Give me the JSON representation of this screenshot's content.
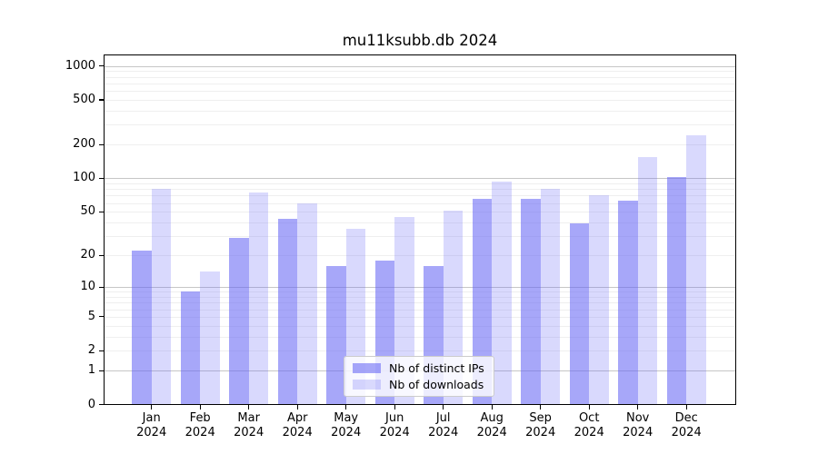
{
  "title": "mu11ksubb.db 2024",
  "chart_data": {
    "type": "bar",
    "title": "mu11ksubb.db 2024",
    "categories": [
      "Jan 2024",
      "Feb 2024",
      "Mar 2024",
      "Apr 2024",
      "May 2024",
      "Jun 2024",
      "Jul 2024",
      "Aug 2024",
      "Sep 2024",
      "Oct 2024",
      "Nov 2024",
      "Dec 2024"
    ],
    "series": [
      {
        "key": "distinct-ips",
        "name": "Nb of distinct IPs",
        "fill": "rgba(100,100,245,0.57)",
        "legend_hex": "#a7a7f9",
        "values": [
          22,
          9,
          29,
          43,
          16,
          18,
          16,
          65,
          65,
          39,
          63,
          103
        ]
      },
      {
        "key": "downloads",
        "name": "Nb of downloads",
        "fill": "rgba(100,100,245,0.245)",
        "legend_hex": "#d9d9fc",
        "values": [
          80,
          14,
          75,
          60,
          35,
          45,
          51,
          93,
          80,
          70,
          155,
          240
        ]
      }
    ],
    "xlabel": "",
    "ylabel": "",
    "yscale": "log10(1+value)",
    "yticks": [
      0,
      1,
      2,
      5,
      10,
      20,
      50,
      100,
      200,
      500,
      1000
    ],
    "ylim": [
      0,
      1200
    ],
    "grid": "horizontal major + minor",
    "legend_position": "lower center inside plot"
  },
  "colors": {
    "background": "#ffffff",
    "axis": "#000000",
    "major_grid": "#c6c6c6",
    "minor_grid": "#efefef",
    "bar_dark": "#a7a7f9",
    "bar_light": "#d9d9fc"
  }
}
